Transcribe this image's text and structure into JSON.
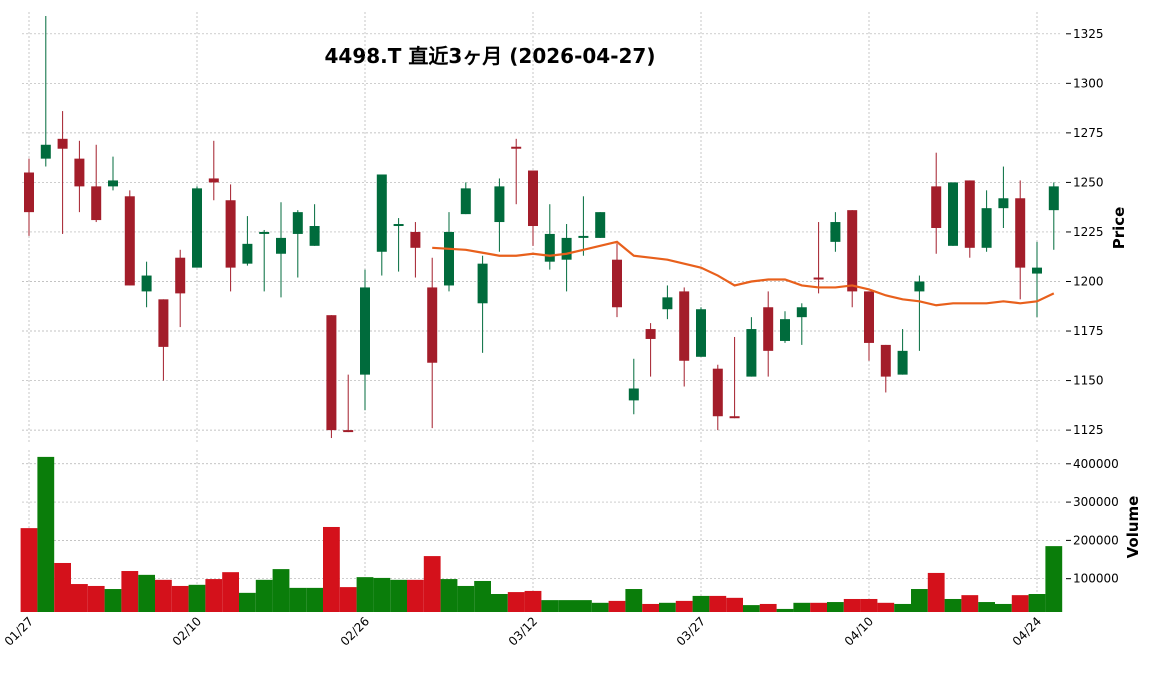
{
  "chart_data": {
    "type": "candlestick",
    "title": "4498.T  直近3ヶ月  (2026-04-27)",
    "categories": [
      "01/27",
      null,
      null,
      null,
      null,
      null,
      null,
      null,
      null,
      null,
      "02/10",
      null,
      null,
      null,
      null,
      null,
      null,
      null,
      null,
      null,
      "02/26",
      null,
      null,
      null,
      null,
      null,
      null,
      null,
      null,
      null,
      "03/12",
      null,
      null,
      null,
      null,
      null,
      null,
      null,
      null,
      null,
      "03/27",
      null,
      null,
      null,
      null,
      null,
      null,
      null,
      null,
      null,
      "04/10",
      null,
      null,
      null,
      null,
      null,
      null,
      null,
      null,
      null,
      "04/24",
      null
    ],
    "open": [
      1255,
      1262,
      1272,
      1262,
      1248,
      1248,
      1243,
      1195,
      1191,
      1212,
      1207,
      1252,
      1241,
      1209,
      1224,
      1214,
      1224,
      1218,
      1183,
      1125,
      1153,
      1215,
      1228,
      1225,
      1197,
      1198,
      1234,
      1189,
      1230,
      1268,
      1256,
      1210,
      1211,
      1222,
      1222,
      1211,
      1140,
      1176,
      1186,
      1195,
      1162,
      1156,
      1132,
      1152,
      1187,
      1170,
      1182,
      1202,
      1220,
      1236,
      1195,
      1168,
      1153,
      1195,
      1248,
      1218,
      1251,
      1217,
      1237,
      1242,
      1204,
      1236
    ],
    "high": [
      1262,
      1334,
      1286,
      1271,
      1269,
      1263,
      1246,
      1210,
      1191,
      1216,
      1248,
      1271,
      1249,
      1233,
      1226,
      1240,
      1236,
      1239,
      1183,
      1153,
      1206,
      1254,
      1232,
      1230,
      1212,
      1235,
      1250,
      1213,
      1252,
      1272,
      1256,
      1239,
      1229,
      1243,
      1235,
      1219,
      1161,
      1179,
      1198,
      1197,
      1187,
      1158,
      1172,
      1182,
      1195,
      1185,
      1189,
      1230,
      1235,
      1236,
      1195,
      1168,
      1176,
      1203,
      1265,
      1250,
      1251,
      1246,
      1258,
      1251,
      1220,
      1250
    ],
    "low": [
      1223,
      1258,
      1224,
      1235,
      1230,
      1246,
      1198,
      1187,
      1150,
      1177,
      1207,
      1241,
      1195,
      1208,
      1195,
      1192,
      1202,
      1218,
      1121,
      1124,
      1135,
      1203,
      1205,
      1202,
      1126,
      1195,
      1234,
      1164,
      1215,
      1239,
      1218,
      1206,
      1195,
      1213,
      1222,
      1182,
      1133,
      1152,
      1181,
      1147,
      1162,
      1125,
      1131,
      1152,
      1152,
      1169,
      1168,
      1194,
      1215,
      1187,
      1160,
      1144,
      1153,
      1165,
      1214,
      1218,
      1212,
      1215,
      1227,
      1191,
      1182,
      1216
    ],
    "close": [
      1235,
      1269,
      1267,
      1248,
      1231,
      1251,
      1198,
      1203,
      1167,
      1194,
      1247,
      1250,
      1207,
      1219,
      1225,
      1222,
      1235,
      1228,
      1125,
      1124,
      1197,
      1254,
      1229,
      1217,
      1159,
      1225,
      1247,
      1209,
      1248,
      1267,
      1228,
      1224,
      1222,
      1223,
      1235,
      1187,
      1146,
      1171,
      1192,
      1160,
      1186,
      1132,
      1131,
      1176,
      1165,
      1181,
      1187,
      1201,
      1230,
      1195,
      1169,
      1152,
      1165,
      1200,
      1227,
      1250,
      1217,
      1237,
      1242,
      1207,
      1207,
      1248
    ],
    "up_color": "#006b3c",
    "down_color": "#a31d2a",
    "moving_average": {
      "color": "#e8601c",
      "values": [
        null,
        null,
        null,
        null,
        null,
        null,
        null,
        null,
        null,
        null,
        null,
        null,
        null,
        null,
        null,
        null,
        null,
        null,
        null,
        null,
        null,
        null,
        null,
        null,
        1217,
        1216.5,
        1216,
        1214.5,
        1213,
        1213,
        1214,
        1213,
        1214,
        1216,
        1218,
        1220,
        1213,
        1212,
        1211,
        1209,
        1207,
        1203,
        1198,
        1200,
        1201,
        1201,
        1198,
        1197,
        1197,
        1198,
        1196,
        1193,
        1191,
        1190,
        1188,
        1189,
        1189,
        1189,
        1190,
        1189,
        1190,
        1194
      ]
    },
    "ylim": [
      1119,
      1336
    ],
    "yticks": [
      1125,
      1150,
      1175,
      1200,
      1225,
      1250,
      1275,
      1300,
      1325
    ],
    "ylabel": "Price",
    "grid": true,
    "volume": {
      "ylabel": "Volume",
      "up_color": "#0a7d0a",
      "down_color": "#d4111b",
      "ylim": [
        13000,
        436000
      ],
      "yticks": [
        100000,
        200000,
        300000,
        400000
      ],
      "values": [
        232000,
        418000,
        141000,
        86000,
        81000,
        73000,
        120000,
        110000,
        97000,
        81000,
        84000,
        99000,
        117000,
        63000,
        97000,
        125000,
        76000,
        76000,
        235000,
        78000,
        104000,
        102000,
        97000,
        97000,
        159000,
        99000,
        81000,
        94000,
        60000,
        65000,
        68000,
        44000,
        44000,
        44000,
        37000,
        42000,
        73000,
        34000,
        37000,
        42000,
        55000,
        55000,
        50000,
        31000,
        34000,
        21000,
        37000,
        37000,
        39000,
        47000,
        47000,
        37000,
        34000,
        73000,
        115000,
        47000,
        57000,
        39000,
        34000,
        57000,
        60000,
        185000
      ]
    }
  }
}
